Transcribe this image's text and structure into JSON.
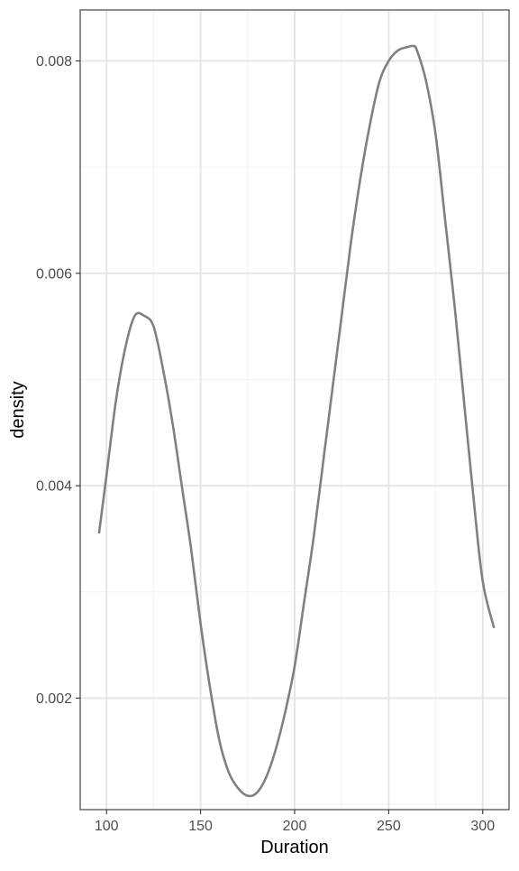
{
  "chart_data": {
    "type": "line",
    "title": "",
    "xlabel": "Duration",
    "ylabel": "density",
    "xlim": [
      86,
      314
    ],
    "ylim": [
      0.00095,
      0.00848
    ],
    "x_ticks": [
      100,
      150,
      200,
      250,
      300
    ],
    "x_tick_labels": [
      "100",
      "150",
      "200",
      "250",
      "300"
    ],
    "y_ticks": [
      0.002,
      0.004,
      0.006,
      0.008
    ],
    "y_tick_labels": [
      "0.002",
      "0.004",
      "0.006",
      "0.008"
    ],
    "grid": true,
    "legend": "none",
    "line_color": "#808080",
    "series": [
      {
        "x": [
          96,
          100,
          105,
          110,
          115,
          120,
          125,
          130,
          135,
          140,
          145,
          150,
          155,
          160,
          165,
          170,
          175,
          180,
          185,
          190,
          195,
          200,
          205,
          210,
          215,
          220,
          225,
          230,
          235,
          240,
          245,
          250,
          255,
          260,
          263,
          265,
          270,
          275,
          280,
          285,
          290,
          295,
          300,
          306
        ],
        "y": [
          0.00355,
          0.0041,
          0.0048,
          0.0053,
          0.0056,
          0.0056,
          0.0055,
          0.0051,
          0.0046,
          0.004,
          0.0034,
          0.0027,
          0.0021,
          0.0016,
          0.0013,
          0.00115,
          0.00108,
          0.00111,
          0.00126,
          0.00152,
          0.00187,
          0.0023,
          0.0029,
          0.0035,
          0.0042,
          0.0049,
          0.0056,
          0.0063,
          0.0069,
          0.0074,
          0.0078,
          0.008,
          0.0081,
          0.00813,
          0.00814,
          0.0081,
          0.0078,
          0.0073,
          0.0065,
          0.0057,
          0.0048,
          0.0039,
          0.0031,
          0.00266
        ]
      }
    ]
  }
}
